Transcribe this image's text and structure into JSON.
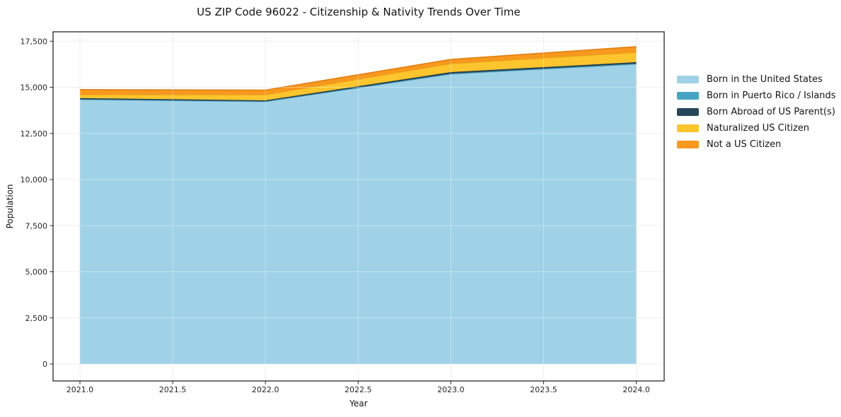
{
  "chart_data": {
    "type": "area",
    "stacked": true,
    "title": "US ZIP Code 96022 - Citizenship & Nativity Trends Over Time",
    "xlabel": "Year",
    "ylabel": "Population",
    "x": [
      2021,
      2022,
      2023,
      2024
    ],
    "series": [
      {
        "name": "Born in the United States",
        "color": "#A0D2E7",
        "edge_color": "#7AB8D4",
        "values": [
          14330,
          14220,
          15710,
          16250
        ]
      },
      {
        "name": "Born in Puerto Rico / Islands",
        "color": "#47A4C2",
        "edge_color": "#35819B",
        "values": [
          30,
          25,
          40,
          40
        ]
      },
      {
        "name": "Born Abroad of US Parent(s)",
        "color": "#26465B",
        "edge_color": "#1A3344",
        "values": [
          55,
          50,
          75,
          75
        ]
      },
      {
        "name": "Naturalized US Citizen",
        "color": "#FCC52E",
        "edge_color": "#E2A414",
        "values": [
          190,
          305,
          460,
          535
        ]
      },
      {
        "name": "Not a US Citizen",
        "color": "#F8981F",
        "edge_color": "#DE7C0D",
        "values": [
          270,
          250,
          230,
          305
        ]
      }
    ],
    "stack_totals": [
      14875,
      14850,
      16515,
      17205
    ],
    "xtick_labels": [
      "2021.0",
      "2021.5",
      "2022.0",
      "2022.5",
      "2023.0",
      "2023.5",
      "2024.0"
    ],
    "xtick_values": [
      2021.0,
      2021.5,
      2022.0,
      2022.5,
      2023.0,
      2023.5,
      2024.0
    ],
    "ytick_labels": [
      "0",
      "2,500",
      "5,000",
      "7,500",
      "10,000",
      "12,500",
      "15,000",
      "17,500"
    ],
    "ytick_values": [
      0,
      2500,
      5000,
      7500,
      10000,
      12500,
      15000,
      17500
    ],
    "xlim": [
      2020.855,
      2024.15
    ],
    "ylim": [
      -920,
      18010
    ],
    "grid": true,
    "legend_position": "right",
    "background_color": "#ffffff",
    "gridline_color": "#e7e7e7",
    "axes_border_color": "#262626"
  }
}
